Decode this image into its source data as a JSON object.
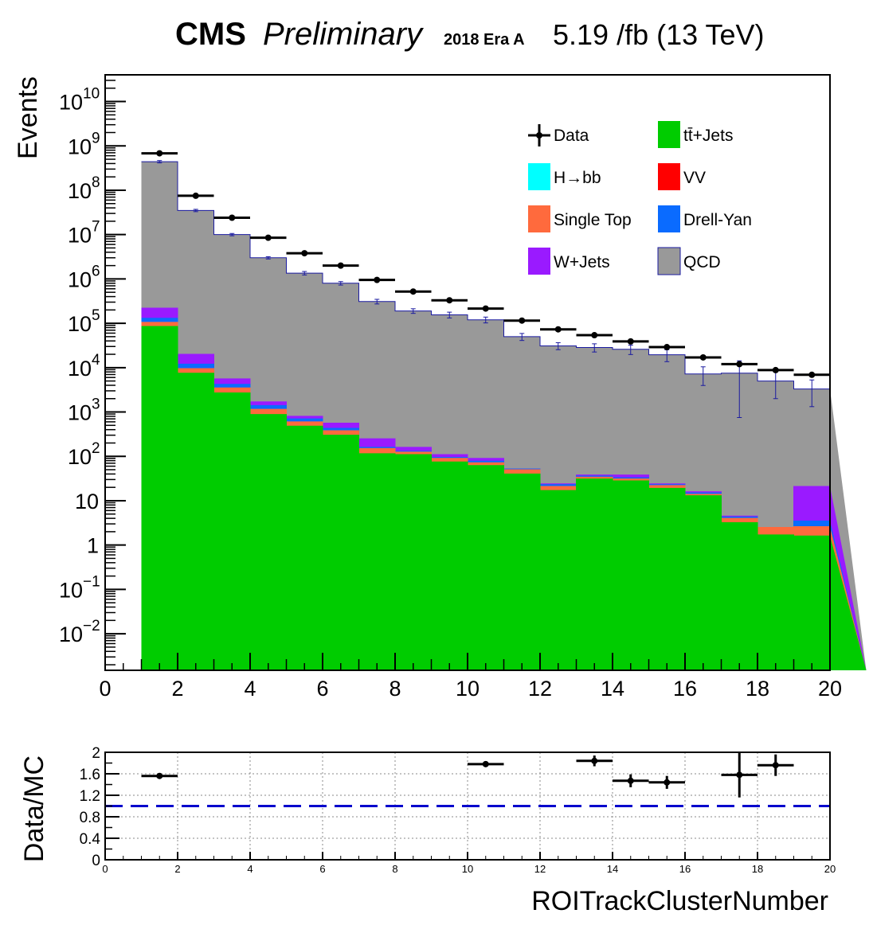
{
  "header": {
    "experiment": "CMS",
    "status": "Preliminary",
    "era": "2018 Era A",
    "lumi": "5.19 /fb (13 TeV)"
  },
  "chart_data": [
    {
      "type": "stacked_histogram",
      "y_scale": "log",
      "xlabel": "ROITrackClusterNumber",
      "ylabel": "Events",
      "xlim": [
        0,
        20
      ],
      "ylim": [
        0.0015,
        40000000000
      ],
      "x_ticks": [
        "0",
        "2",
        "4",
        "6",
        "8",
        "10",
        "12",
        "14",
        "16",
        "18",
        "20"
      ],
      "y_ticks": [
        {
          "value": 0.01,
          "label": "10",
          "exp": "−2"
        },
        {
          "value": 0.1,
          "label": "10",
          "exp": "−1"
        },
        {
          "value": 1,
          "label": "1",
          "exp": ""
        },
        {
          "value": 10,
          "label": "10",
          "exp": ""
        },
        {
          "value": 100,
          "label": "10",
          "exp": "2"
        },
        {
          "value": 1000,
          "label": "10",
          "exp": "3"
        },
        {
          "value": 10000,
          "label": "10",
          "exp": "4"
        },
        {
          "value": 100000,
          "label": "10",
          "exp": "5"
        },
        {
          "value": 1000000,
          "label": "10",
          "exp": "6"
        },
        {
          "value": 10000000,
          "label": "10",
          "exp": "7"
        },
        {
          "value": 100000000,
          "label": "10",
          "exp": "8"
        },
        {
          "value": 1000000000,
          "label": "10",
          "exp": "9"
        },
        {
          "value": 10000000000,
          "label": "10",
          "exp": "10"
        }
      ],
      "bin_edges": [
        1,
        2,
        3,
        4,
        5,
        6,
        7,
        8,
        9,
        10,
        11,
        12,
        13,
        14,
        15,
        16,
        17,
        18,
        19,
        20
      ],
      "legend": [
        {
          "label": "Data",
          "kind": "marker"
        },
        {
          "label": "tt̄+Jets",
          "kind": "fill",
          "color": "#00cc00"
        },
        {
          "label": "H→bb",
          "kind": "fill",
          "color": "#00ffff"
        },
        {
          "label": "VV",
          "kind": "fill",
          "color": "#ff0000"
        },
        {
          "label": "Single Top",
          "kind": "fill",
          "color": "#ff6a3d"
        },
        {
          "label": "Drell-Yan",
          "kind": "fill",
          "color": "#0a6bff"
        },
        {
          "label": "W+Jets",
          "kind": "fill",
          "color": "#9a1aff"
        },
        {
          "label": "QCD",
          "kind": "fill",
          "color": "#999999"
        }
      ],
      "stack_top_per_group": [
        {
          "name": "tt̄+Jets",
          "color": "#00cc00",
          "values": [
            85000,
            7500,
            2700,
            880,
            480,
            300,
            115,
            110,
            75,
            62,
            40,
            17,
            31,
            28,
            19,
            13,
            3.2,
            1.7,
            1.6
          ]
        },
        {
          "name": "Single Top",
          "color": "#ff6a3d",
          "values": [
            105000,
            9500,
            3500,
            1150,
            600,
            380,
            150,
            125,
            90,
            72,
            50,
            21,
            34,
            31,
            22,
            14,
            4.0,
            2.5,
            2.6
          ]
        },
        {
          "name": "Drell-Yan",
          "color": "#0a6bff",
          "values": [
            130000,
            12000,
            4200,
            1400,
            700,
            430,
            160,
            130,
            95,
            78,
            52,
            23,
            36,
            33,
            23,
            15,
            4.3,
            2.5,
            3.5
          ]
        },
        {
          "name": "W+Jets",
          "color": "#9a1aff",
          "values": [
            220000,
            20000,
            5600,
            1700,
            800,
            560,
            250,
            160,
            110,
            90,
            52,
            24,
            38,
            38,
            24,
            16,
            4.5,
            2.5,
            21
          ]
        },
        {
          "name": "QCD",
          "color": "#999999",
          "values": [
            440000000,
            35000000,
            10000000,
            3000000,
            1350000,
            800000,
            310000,
            190000,
            155000,
            120000,
            50000,
            31000,
            28500,
            26000,
            19500,
            7200,
            7500,
            5000,
            3300
          ]
        }
      ],
      "mc_errors_per_bin": [
        0.02,
        0.02,
        0.02,
        0.02,
        0.03,
        0.03,
        0.04,
        0.04,
        0.05,
        0.05,
        0.06,
        0.06,
        0.07,
        0.08,
        0.1,
        0.15,
        0.3,
        0.2,
        0.2
      ],
      "data": {
        "x": [
          1.5,
          2.5,
          3.5,
          4.5,
          5.5,
          6.5,
          7.5,
          8.5,
          9.5,
          10.5,
          11.5,
          12.5,
          13.5,
          14.5,
          15.5,
          16.5,
          17.5,
          18.5,
          19.5
        ],
        "y": [
          680000000,
          75000000,
          24000000,
          8500000,
          3800000,
          2000000,
          950000,
          520000,
          330000,
          215000,
          115000,
          73000,
          54000,
          39000,
          29000,
          17000,
          12000,
          8800,
          6900
        ]
      }
    },
    {
      "type": "scatter",
      "ylabel": "Data/MC",
      "xlim": [
        0,
        20
      ],
      "ylim": [
        0,
        2
      ],
      "x_ticks": [
        "0",
        "2",
        "4",
        "6",
        "8",
        "10",
        "12",
        "14",
        "16",
        "18",
        "20"
      ],
      "y_ticks": [
        "0",
        "0.4",
        "0.8",
        "1.2",
        "1.6",
        "2"
      ],
      "y_minor_ticks": [
        "0.2",
        "0.6",
        "1",
        "1.4",
        "1.8"
      ],
      "reference_line": 1.0,
      "points": [
        {
          "x": 1.5,
          "y": 1.56,
          "err": 0.02
        },
        {
          "x": 10.5,
          "y": 1.78,
          "err": 0.03
        },
        {
          "x": 13.5,
          "y": 1.84,
          "err": 0.1
        },
        {
          "x": 14.5,
          "y": 1.47,
          "err": 0.12
        },
        {
          "x": 15.5,
          "y": 1.44,
          "err": 0.12
        },
        {
          "x": 17.5,
          "y": 1.58,
          "err": 0.42
        },
        {
          "x": 18.5,
          "y": 1.76,
          "err": 0.2
        }
      ],
      "grid": true
    }
  ]
}
